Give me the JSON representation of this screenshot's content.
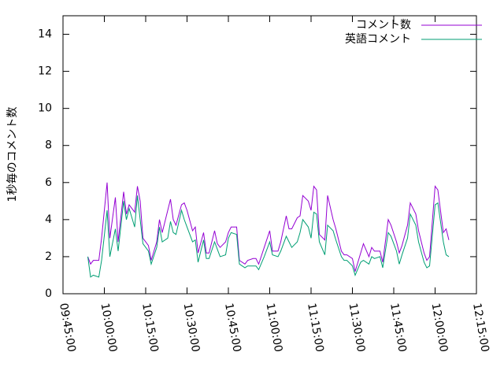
{
  "chart_data": {
    "type": "line",
    "ylabel": "1秒毎のコメント数",
    "x": [
      "09:54:00",
      "09:55:00",
      "09:56:00",
      "09:58:00",
      "09:59:00",
      "10:01:00",
      "10:02:00",
      "10:04:00",
      "10:05:00",
      "10:07:00",
      "10:08:00",
      "10:09:00",
      "10:11:00",
      "10:12:00",
      "10:13:00",
      "10:14:00",
      "10:16:00",
      "10:17:00",
      "10:19:00",
      "10:20:00",
      "10:21:00",
      "10:23:00",
      "10:24:00",
      "10:25:00",
      "10:26:00",
      "10:28:00",
      "10:29:00",
      "10:30:00",
      "10:32:00",
      "10:33:00",
      "10:34:00",
      "10:36:00",
      "10:37:00",
      "10:38:00",
      "10:40:00",
      "10:41:00",
      "10:42:00",
      "10:44:00",
      "10:45:00",
      "10:46:00",
      "10:48:00",
      "10:49:00",
      "10:51:00",
      "10:52:00",
      "10:54:00",
      "10:55:00",
      "10:56:00",
      "10:58:00",
      "11:00:00",
      "11:01:00",
      "11:03:00",
      "11:04:00",
      "11:06:00",
      "11:07:00",
      "11:08:00",
      "11:10:00",
      "11:11:00",
      "11:12:00",
      "11:14:00",
      "11:15:00",
      "11:16:00",
      "11:17:00",
      "11:18:00",
      "11:20:00",
      "11:21:00",
      "11:23:00",
      "11:24:00",
      "11:26:00",
      "11:27:00",
      "11:28:00",
      "11:30:00",
      "11:31:00",
      "11:33:00",
      "11:34:00",
      "11:36:00",
      "11:37:00",
      "11:38:00",
      "11:40:00",
      "11:41:00",
      "11:43:00",
      "11:44:00",
      "11:46:00",
      "11:47:00",
      "11:48:00",
      "11:50:00",
      "11:51:00",
      "11:53:00",
      "11:54:00",
      "11:56:00",
      "11:57:00",
      "11:58:00",
      "12:00:00",
      "12:01:00",
      "12:03:00",
      "12:04:00",
      "12:05:00"
    ],
    "series": [
      {
        "name": "コメント数",
        "color": "#9400d3",
        "values": [
          2.0,
          1.6,
          1.8,
          1.8,
          3.0,
          6.0,
          3.0,
          5.2,
          2.8,
          5.5,
          4.3,
          4.8,
          4.4,
          5.8,
          5.0,
          3.0,
          2.6,
          1.8,
          2.8,
          4.0,
          3.3,
          4.5,
          5.1,
          4.0,
          3.7,
          4.8,
          4.9,
          4.5,
          3.4,
          3.6,
          2.2,
          3.3,
          2.2,
          2.2,
          3.4,
          2.7,
          2.5,
          2.8,
          3.3,
          3.6,
          3.6,
          1.8,
          1.6,
          1.8,
          1.9,
          1.9,
          1.6,
          2.5,
          3.4,
          2.3,
          2.3,
          2.8,
          4.2,
          3.5,
          3.5,
          4.1,
          4.2,
          5.3,
          5.0,
          4.5,
          5.8,
          5.6,
          3.2,
          2.9,
          5.3,
          4.0,
          3.5,
          2.3,
          2.1,
          2.1,
          1.9,
          1.2,
          2.2,
          2.7,
          2.0,
          2.5,
          2.3,
          2.3,
          1.7,
          4.0,
          3.7,
          2.8,
          2.2,
          2.6,
          3.7,
          4.9,
          4.3,
          3.4,
          2.2,
          1.8,
          2.0,
          5.8,
          5.6,
          3.3,
          3.5,
          2.9
        ]
      },
      {
        "name": "英語コメント",
        "color": "#009e73",
        "values": [
          2.0,
          0.9,
          1.0,
          0.9,
          1.8,
          4.5,
          2.0,
          3.5,
          2.3,
          5.0,
          4.0,
          4.6,
          3.6,
          5.3,
          4.0,
          2.7,
          2.3,
          1.6,
          2.5,
          3.6,
          2.8,
          3.0,
          3.9,
          3.3,
          3.2,
          4.5,
          4.0,
          3.6,
          2.8,
          2.9,
          1.7,
          2.9,
          1.9,
          1.9,
          2.8,
          2.4,
          2.0,
          2.1,
          3.0,
          3.3,
          3.2,
          1.6,
          1.4,
          1.5,
          1.5,
          1.5,
          1.3,
          2.0,
          2.8,
          2.1,
          2.0,
          2.3,
          3.1,
          2.8,
          2.5,
          2.8,
          3.3,
          4.0,
          3.6,
          3.0,
          4.4,
          4.3,
          2.8,
          2.1,
          3.7,
          3.4,
          2.9,
          2.0,
          1.8,
          1.8,
          1.5,
          1.0,
          1.7,
          1.8,
          1.6,
          2.0,
          1.9,
          2.0,
          1.4,
          3.3,
          3.1,
          2.3,
          1.6,
          2.1,
          3.0,
          4.3,
          3.7,
          2.8,
          1.7,
          1.4,
          1.5,
          4.8,
          4.9,
          2.8,
          2.1,
          2.0
        ]
      }
    ],
    "xlim": [
      "09:45:00",
      "12:15:00"
    ],
    "xticks": [
      "09:45:00",
      "10:00:00",
      "10:15:00",
      "10:30:00",
      "10:45:00",
      "11:00:00",
      "11:15:00",
      "11:30:00",
      "11:45:00",
      "12:00:00",
      "12:15:00"
    ],
    "ylim": [
      0,
      15
    ],
    "yticks": [
      0,
      2,
      4,
      6,
      8,
      10,
      12,
      14
    ],
    "grid": false,
    "legend": "top-right"
  }
}
